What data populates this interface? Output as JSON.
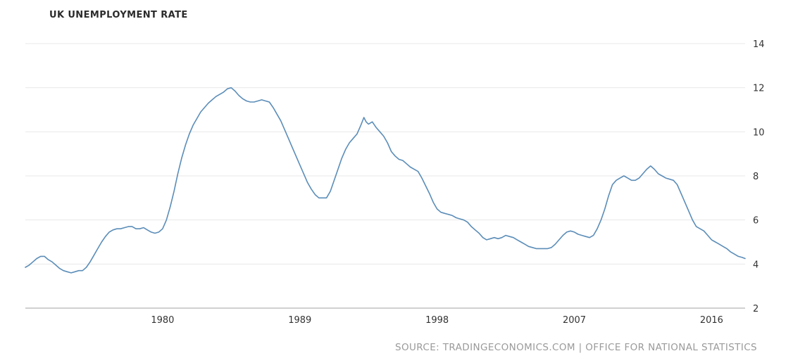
{
  "title": "UK UNEMPLOYMENT RATE",
  "source": "SOURCE: TRADINGECONOMICS.COM | OFFICE FOR NATIONAL STATISTICS",
  "colors": {
    "line": "#5b8db8",
    "grid": "#e8e8e8",
    "axis": "#a0a0a0",
    "tick_text": "#333333",
    "background": "#ffffff"
  },
  "chart_data": {
    "type": "line",
    "title": "UK UNEMPLOYMENT RATE",
    "xlabel": "",
    "ylabel": "",
    "legend": false,
    "grid": true,
    "legend_position": "none",
    "x_ticks": [
      1980,
      1989,
      1998,
      2007,
      2016
    ],
    "y_ticks": [
      2,
      4,
      6,
      8,
      10,
      12,
      14
    ],
    "xlim": [
      1971,
      2018.2
    ],
    "ylim": [
      2,
      14
    ],
    "series_name": "UK Unemployment Rate (%)",
    "points": [
      [
        1971.0,
        3.85
      ],
      [
        1971.25,
        3.95
      ],
      [
        1971.5,
        4.1
      ],
      [
        1971.75,
        4.25
      ],
      [
        1972.0,
        4.35
      ],
      [
        1972.25,
        4.35
      ],
      [
        1972.5,
        4.2
      ],
      [
        1972.75,
        4.1
      ],
      [
        1973.0,
        3.95
      ],
      [
        1973.25,
        3.8
      ],
      [
        1973.5,
        3.7
      ],
      [
        1973.75,
        3.65
      ],
      [
        1974.0,
        3.6
      ],
      [
        1974.25,
        3.65
      ],
      [
        1974.5,
        3.7
      ],
      [
        1974.75,
        3.7
      ],
      [
        1975.0,
        3.85
      ],
      [
        1975.25,
        4.1
      ],
      [
        1975.5,
        4.4
      ],
      [
        1975.75,
        4.7
      ],
      [
        1976.0,
        5.0
      ],
      [
        1976.25,
        5.25
      ],
      [
        1976.5,
        5.45
      ],
      [
        1976.75,
        5.55
      ],
      [
        1977.0,
        5.6
      ],
      [
        1977.25,
        5.6
      ],
      [
        1977.5,
        5.65
      ],
      [
        1977.75,
        5.7
      ],
      [
        1978.0,
        5.7
      ],
      [
        1978.25,
        5.6
      ],
      [
        1978.5,
        5.6
      ],
      [
        1978.75,
        5.65
      ],
      [
        1979.0,
        5.55
      ],
      [
        1979.25,
        5.45
      ],
      [
        1979.5,
        5.4
      ],
      [
        1979.75,
        5.45
      ],
      [
        1980.0,
        5.6
      ],
      [
        1980.25,
        6.0
      ],
      [
        1980.5,
        6.6
      ],
      [
        1980.75,
        7.3
      ],
      [
        1981.0,
        8.1
      ],
      [
        1981.25,
        8.8
      ],
      [
        1981.5,
        9.4
      ],
      [
        1981.75,
        9.9
      ],
      [
        1982.0,
        10.3
      ],
      [
        1982.25,
        10.6
      ],
      [
        1982.5,
        10.9
      ],
      [
        1982.75,
        11.1
      ],
      [
        1983.0,
        11.3
      ],
      [
        1983.25,
        11.45
      ],
      [
        1983.5,
        11.6
      ],
      [
        1983.75,
        11.7
      ],
      [
        1984.0,
        11.8
      ],
      [
        1984.25,
        11.95
      ],
      [
        1984.5,
        12.0
      ],
      [
        1984.75,
        11.85
      ],
      [
        1985.0,
        11.65
      ],
      [
        1985.25,
        11.5
      ],
      [
        1985.5,
        11.4
      ],
      [
        1985.75,
        11.35
      ],
      [
        1986.0,
        11.35
      ],
      [
        1986.25,
        11.4
      ],
      [
        1986.5,
        11.45
      ],
      [
        1986.75,
        11.4
      ],
      [
        1987.0,
        11.35
      ],
      [
        1987.25,
        11.1
      ],
      [
        1987.5,
        10.8
      ],
      [
        1987.75,
        10.5
      ],
      [
        1988.0,
        10.1
      ],
      [
        1988.25,
        9.7
      ],
      [
        1988.5,
        9.3
      ],
      [
        1988.75,
        8.9
      ],
      [
        1989.0,
        8.5
      ],
      [
        1989.25,
        8.1
      ],
      [
        1989.5,
        7.7
      ],
      [
        1989.75,
        7.4
      ],
      [
        1990.0,
        7.15
      ],
      [
        1990.25,
        7.0
      ],
      [
        1990.5,
        7.0
      ],
      [
        1990.75,
        7.0
      ],
      [
        1991.0,
        7.3
      ],
      [
        1991.25,
        7.8
      ],
      [
        1991.5,
        8.3
      ],
      [
        1991.75,
        8.8
      ],
      [
        1992.0,
        9.2
      ],
      [
        1992.25,
        9.5
      ],
      [
        1992.5,
        9.7
      ],
      [
        1992.75,
        9.9
      ],
      [
        1993.0,
        10.3
      ],
      [
        1993.2,
        10.65
      ],
      [
        1993.35,
        10.45
      ],
      [
        1993.5,
        10.35
      ],
      [
        1993.75,
        10.45
      ],
      [
        1994.0,
        10.2
      ],
      [
        1994.25,
        10.0
      ],
      [
        1994.5,
        9.8
      ],
      [
        1994.75,
        9.5
      ],
      [
        1995.0,
        9.1
      ],
      [
        1995.25,
        8.9
      ],
      [
        1995.5,
        8.75
      ],
      [
        1995.75,
        8.7
      ],
      [
        1996.0,
        8.55
      ],
      [
        1996.25,
        8.4
      ],
      [
        1996.5,
        8.3
      ],
      [
        1996.75,
        8.2
      ],
      [
        1997.0,
        7.9
      ],
      [
        1997.25,
        7.55
      ],
      [
        1997.5,
        7.2
      ],
      [
        1997.75,
        6.8
      ],
      [
        1998.0,
        6.5
      ],
      [
        1998.25,
        6.35
      ],
      [
        1998.5,
        6.3
      ],
      [
        1998.75,
        6.25
      ],
      [
        1999.0,
        6.2
      ],
      [
        1999.25,
        6.1
      ],
      [
        1999.5,
        6.05
      ],
      [
        1999.75,
        6.0
      ],
      [
        2000.0,
        5.9
      ],
      [
        2000.25,
        5.7
      ],
      [
        2000.5,
        5.55
      ],
      [
        2000.75,
        5.4
      ],
      [
        2001.0,
        5.2
      ],
      [
        2001.25,
        5.1
      ],
      [
        2001.5,
        5.15
      ],
      [
        2001.75,
        5.2
      ],
      [
        2002.0,
        5.15
      ],
      [
        2002.25,
        5.2
      ],
      [
        2002.5,
        5.3
      ],
      [
        2002.75,
        5.25
      ],
      [
        2003.0,
        5.2
      ],
      [
        2003.25,
        5.1
      ],
      [
        2003.5,
        5.0
      ],
      [
        2003.75,
        4.9
      ],
      [
        2004.0,
        4.8
      ],
      [
        2004.25,
        4.75
      ],
      [
        2004.5,
        4.7
      ],
      [
        2004.75,
        4.7
      ],
      [
        2005.0,
        4.7
      ],
      [
        2005.25,
        4.7
      ],
      [
        2005.5,
        4.75
      ],
      [
        2005.75,
        4.9
      ],
      [
        2006.0,
        5.1
      ],
      [
        2006.25,
        5.3
      ],
      [
        2006.5,
        5.45
      ],
      [
        2006.75,
        5.5
      ],
      [
        2007.0,
        5.45
      ],
      [
        2007.25,
        5.35
      ],
      [
        2007.5,
        5.3
      ],
      [
        2007.75,
        5.25
      ],
      [
        2008.0,
        5.2
      ],
      [
        2008.25,
        5.3
      ],
      [
        2008.5,
        5.6
      ],
      [
        2008.75,
        6.0
      ],
      [
        2009.0,
        6.5
      ],
      [
        2009.25,
        7.1
      ],
      [
        2009.5,
        7.6
      ],
      [
        2009.75,
        7.8
      ],
      [
        2010.0,
        7.9
      ],
      [
        2010.25,
        8.0
      ],
      [
        2010.5,
        7.9
      ],
      [
        2010.75,
        7.8
      ],
      [
        2011.0,
        7.8
      ],
      [
        2011.25,
        7.9
      ],
      [
        2011.5,
        8.1
      ],
      [
        2011.75,
        8.3
      ],
      [
        2012.0,
        8.45
      ],
      [
        2012.25,
        8.3
      ],
      [
        2012.5,
        8.1
      ],
      [
        2012.75,
        8.0
      ],
      [
        2013.0,
        7.9
      ],
      [
        2013.25,
        7.85
      ],
      [
        2013.5,
        7.8
      ],
      [
        2013.75,
        7.6
      ],
      [
        2014.0,
        7.2
      ],
      [
        2014.25,
        6.8
      ],
      [
        2014.5,
        6.4
      ],
      [
        2014.75,
        6.0
      ],
      [
        2015.0,
        5.7
      ],
      [
        2015.25,
        5.6
      ],
      [
        2015.5,
        5.5
      ],
      [
        2015.75,
        5.3
      ],
      [
        2016.0,
        5.1
      ],
      [
        2016.25,
        5.0
      ],
      [
        2016.5,
        4.9
      ],
      [
        2016.75,
        4.8
      ],
      [
        2017.0,
        4.7
      ],
      [
        2017.25,
        4.55
      ],
      [
        2017.5,
        4.45
      ],
      [
        2017.75,
        4.35
      ],
      [
        2018.0,
        4.3
      ],
      [
        2018.2,
        4.25
      ]
    ]
  }
}
